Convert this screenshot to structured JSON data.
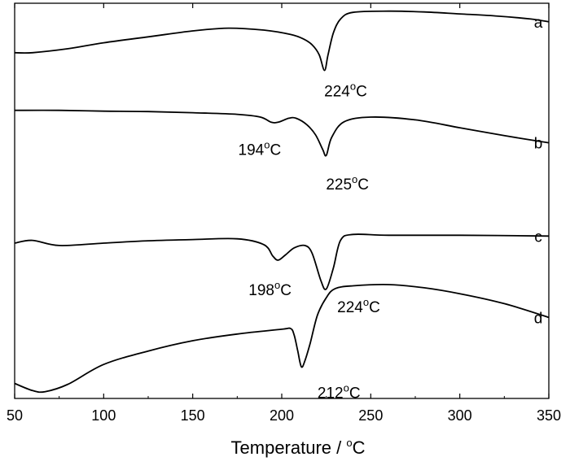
{
  "chart_data": {
    "type": "line",
    "title": "",
    "xlabel": "Temperature / ",
    "xlabel_unit": "°C",
    "ylabel": "",
    "xlim": [
      50,
      350
    ],
    "xticks": [
      50,
      100,
      150,
      200,
      250,
      300,
      350
    ],
    "y_tick_labels": false,
    "grid": false,
    "series": [
      {
        "name": "a",
        "x": [
          50,
          60,
          80,
          100,
          125,
          150,
          170,
          190,
          205,
          212,
          217,
          221,
          224,
          226,
          229,
          233,
          240,
          260,
          280,
          300,
          320,
          340,
          350
        ],
        "y": [
          0.875,
          0.875,
          0.885,
          0.9,
          0.915,
          0.93,
          0.937,
          0.932,
          0.921,
          0.91,
          0.895,
          0.87,
          0.83,
          0.87,
          0.925,
          0.96,
          0.977,
          0.98,
          0.978,
          0.973,
          0.968,
          0.96,
          0.953
        ]
      },
      {
        "name": "b",
        "x": [
          50,
          75,
          100,
          125,
          150,
          175,
          188,
          194,
          198,
          204,
          208,
          214,
          219,
          223,
          225,
          228,
          235,
          250,
          275,
          300,
          325,
          350
        ],
        "y": [
          0.729,
          0.729,
          0.727,
          0.726,
          0.723,
          0.719,
          0.712,
          0.699,
          0.699,
          0.709,
          0.709,
          0.693,
          0.667,
          0.63,
          0.615,
          0.66,
          0.7,
          0.712,
          0.705,
          0.685,
          0.665,
          0.647
        ]
      },
      {
        "name": "c",
        "x": [
          50,
          60,
          75,
          100,
          125,
          150,
          175,
          190,
          195,
          198,
          202,
          207,
          213,
          217,
          222,
          225,
          229,
          233,
          240,
          260,
          300,
          350
        ],
        "y": [
          0.393,
          0.4,
          0.387,
          0.393,
          0.399,
          0.402,
          0.404,
          0.389,
          0.36,
          0.35,
          0.363,
          0.381,
          0.387,
          0.368,
          0.298,
          0.277,
          0.33,
          0.4,
          0.415,
          0.413,
          0.413,
          0.411
        ]
      },
      {
        "name": "d",
        "x": [
          50,
          60,
          67,
          80,
          100,
          125,
          150,
          175,
          200,
          205,
          207,
          209,
          211,
          213,
          216,
          220,
          225,
          230,
          240,
          260,
          280,
          300,
          325,
          350
        ],
        "y": [
          0.038,
          0.02,
          0.017,
          0.036,
          0.086,
          0.12,
          0.146,
          0.163,
          0.175,
          0.177,
          0.16,
          0.12,
          0.08,
          0.095,
          0.14,
          0.21,
          0.255,
          0.278,
          0.285,
          0.288,
          0.28,
          0.265,
          0.24,
          0.205
        ]
      }
    ],
    "annotations": [
      {
        "series": "a",
        "x": 224,
        "text": "224",
        "unit": "°C"
      },
      {
        "series": "b",
        "x": 194,
        "text": "194",
        "unit": "°C"
      },
      {
        "series": "b",
        "x": 225,
        "text": "225",
        "unit": "°C"
      },
      {
        "series": "c",
        "x": 198,
        "text": "198",
        "unit": "°C"
      },
      {
        "series": "c",
        "x": 224,
        "text": "224",
        "unit": "°C"
      },
      {
        "series": "d",
        "x": 212,
        "text": "212",
        "unit": "°C"
      }
    ]
  }
}
